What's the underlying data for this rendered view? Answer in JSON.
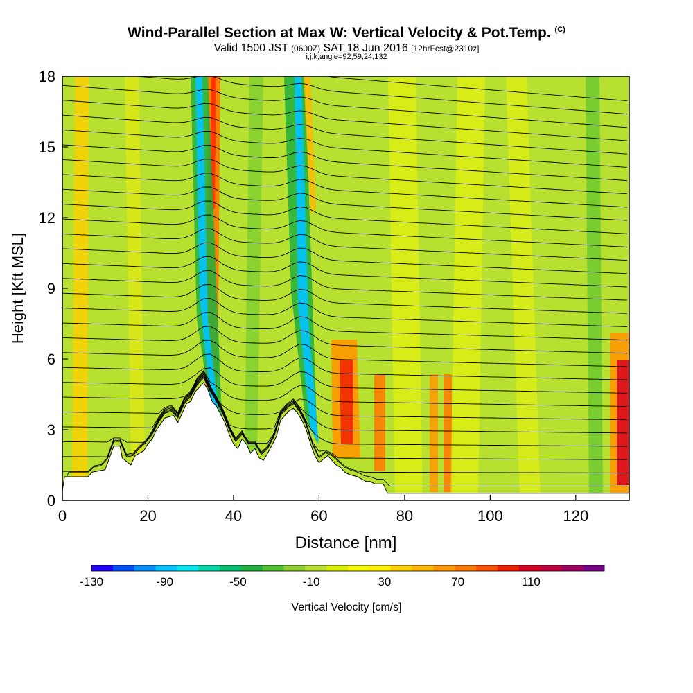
{
  "title_main": "Wind-Parallel Section at Max W: Vertical Velocity & Pot.Temp.",
  "title_mark": "(C)",
  "subtitle_pre": "Valid 1500 JST",
  "subtitle_z": "(0600Z)",
  "subtitle_date": "SAT 18 Jun 2016",
  "subtitle_fcst": "[12hrFcst@2310z]",
  "subtitle_params": "i,j,k,angle=92,59,24,132",
  "chart_data": {
    "type": "heatmap",
    "xlabel": "Distance [nm]",
    "ylabel": "Height [Kft MSL]",
    "xlim": [
      0,
      132.5
    ],
    "ylim": [
      0,
      18
    ],
    "x_ticks": [
      0,
      20,
      40,
      60,
      80,
      100,
      120
    ],
    "y_ticks": [
      0,
      3,
      6,
      9,
      12,
      15,
      18
    ],
    "colorbar": {
      "label": "Vertical Velocity [cm/s]",
      "min": -130,
      "max": 150,
      "tick_values": [
        -130,
        -90,
        -50,
        -10,
        30,
        70,
        110
      ],
      "colors": [
        "#1f00ff",
        "#0050ff",
        "#0090ff",
        "#00c4ff",
        "#00e8f0",
        "#00d8a8",
        "#00c070",
        "#20b040",
        "#50c030",
        "#90d030",
        "#b8e030",
        "#d8f000",
        "#f8f800",
        "#fff000",
        "#ffd000",
        "#ffb800",
        "#ff9800",
        "#ff7800",
        "#ff5000",
        "#f02000",
        "#d80020",
        "#c00040",
        "#a00060",
        "#780088"
      ]
    },
    "terrain_kft": [
      [
        0,
        0.4
      ],
      [
        0.5,
        1.0
      ],
      [
        6,
        1.0
      ],
      [
        7,
        1.2
      ],
      [
        10,
        1.3
      ],
      [
        11,
        1.8
      ],
      [
        12,
        2.3
      ],
      [
        13.5,
        2.3
      ],
      [
        14,
        1.8
      ],
      [
        16,
        1.5
      ],
      [
        17,
        1.9
      ],
      [
        19,
        2.1
      ],
      [
        20,
        2.4
      ],
      [
        21,
        2.6
      ],
      [
        22,
        3.0
      ],
      [
        24,
        3.5
      ],
      [
        26,
        3.6
      ],
      [
        27,
        3.3
      ],
      [
        28,
        3.7
      ],
      [
        29,
        4.1
      ],
      [
        30,
        4.2
      ],
      [
        31,
        4.6
      ],
      [
        32,
        4.8
      ],
      [
        33,
        5.0
      ],
      [
        34,
        4.7
      ],
      [
        35,
        4.2
      ],
      [
        36,
        4.0
      ],
      [
        38,
        3.3
      ],
      [
        39,
        2.8
      ],
      [
        40,
        2.4
      ],
      [
        41,
        2.2
      ],
      [
        42,
        2.6
      ],
      [
        43,
        2.4
      ],
      [
        44,
        2.0
      ],
      [
        45,
        2.2
      ],
      [
        46,
        1.8
      ],
      [
        47,
        1.7
      ],
      [
        48,
        2.0
      ],
      [
        50,
        2.7
      ],
      [
        51,
        3.4
      ],
      [
        52,
        3.6
      ],
      [
        53,
        3.8
      ],
      [
        54,
        3.9
      ],
      [
        55,
        3.7
      ],
      [
        56,
        3.4
      ],
      [
        57,
        3.0
      ],
      [
        58,
        2.4
      ],
      [
        59,
        1.9
      ],
      [
        60,
        1.6
      ],
      [
        62,
        1.9
      ],
      [
        63,
        1.7
      ],
      [
        64,
        1.5
      ],
      [
        65,
        1.4
      ],
      [
        66,
        1.2
      ],
      [
        67,
        1.1
      ],
      [
        69,
        1.0
      ],
      [
        70,
        0.9
      ],
      [
        71,
        0.8
      ],
      [
        72,
        0.8
      ],
      [
        73,
        0.7
      ],
      [
        75,
        0.7
      ],
      [
        76,
        0.3
      ],
      [
        132.5,
        0.3
      ]
    ]
  }
}
